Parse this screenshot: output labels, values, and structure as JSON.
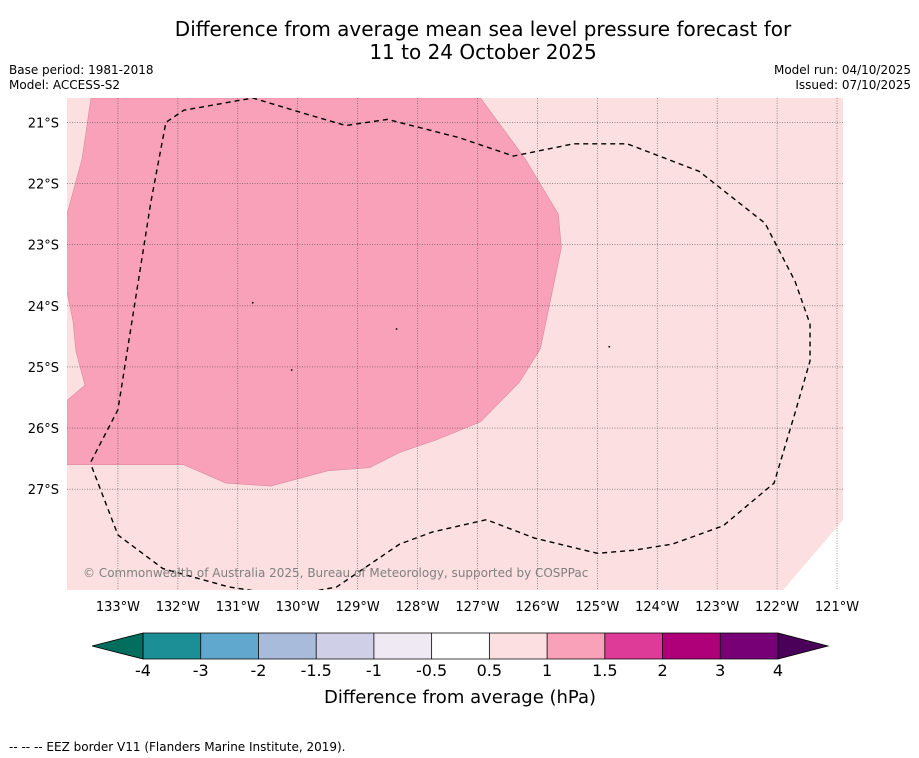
{
  "header": {
    "title_line1": "Difference from average mean sea level pressure forecast for",
    "title_line2": "11 to 24 October 2025",
    "base_period": "Base period: 1981-2018",
    "model": "Model: ACCESS-S2",
    "model_run": "Model run: 04/10/2025",
    "issued": "Issued: 07/10/2025"
  },
  "copyright": "© Commonwealth of Australia 2025, Bureau of Meteorology, supported by COSPPac",
  "footer_note": "--  --  -- EEZ border V11 (Flanders Marine Institute, 2019).",
  "colors": {
    "band_0p5_1": "#fcdfe0",
    "band_1_1p5": "#f9a1b8",
    "grid": "#555555",
    "eez": "#000000"
  },
  "chart_data": {
    "type": "heatmap",
    "title": "Difference from average mean sea level pressure forecast for 11 to 24 October 2025",
    "units": "hPa",
    "lon_range": [
      -133.85,
      -120.9
    ],
    "lat_range": [
      -28.65,
      -20.6
    ],
    "x_ticks": [
      -133,
      -132,
      -131,
      -130,
      -129,
      -128,
      -127,
      -126,
      -125,
      -124,
      -123,
      -122,
      -121
    ],
    "x_tick_labels": [
      "133°W",
      "132°W",
      "131°W",
      "130°W",
      "129°W",
      "128°W",
      "127°W",
      "126°W",
      "125°W",
      "124°W",
      "123°W",
      "122°W",
      "121°W"
    ],
    "y_ticks": [
      -21,
      -22,
      -23,
      -24,
      -25,
      -26,
      -27
    ],
    "y_tick_labels": [
      "21°S",
      "22°S",
      "23°S",
      "24°S",
      "25°S",
      "26°S",
      "27°S"
    ],
    "background_band": "0.5 to 1",
    "regions": [
      {
        "band": "1 to 1.5",
        "polygon_lonlat": [
          [
            -129.8,
            -20.6
          ],
          [
            -126.95,
            -20.6
          ],
          [
            -126.2,
            -21.6
          ],
          [
            -125.65,
            -22.5
          ],
          [
            -125.6,
            -23.05
          ],
          [
            -125.95,
            -24.7
          ],
          [
            -126.3,
            -25.25
          ],
          [
            -126.95,
            -25.9
          ],
          [
            -127.7,
            -26.2
          ],
          [
            -128.3,
            -26.4
          ],
          [
            -128.8,
            -26.65
          ],
          [
            -129.5,
            -26.7
          ],
          [
            -130.45,
            -26.95
          ],
          [
            -131.2,
            -26.9
          ],
          [
            -131.9,
            -26.6
          ],
          [
            -132.6,
            -26.6
          ],
          [
            -133.85,
            -26.6
          ],
          [
            -133.85,
            -25.55
          ],
          [
            -133.55,
            -25.3
          ],
          [
            -133.7,
            -24.75
          ],
          [
            -133.75,
            -24.25
          ],
          [
            -133.9,
            -23.55
          ],
          [
            -133.85,
            -22.5
          ],
          [
            -133.6,
            -21.6
          ],
          [
            -133.45,
            -20.6
          ]
        ]
      }
    ],
    "eez_border_lonlat": [
      [
        -133.45,
        -26.55
      ],
      [
        -133.0,
        -25.7
      ],
      [
        -132.45,
        -22.3
      ],
      [
        -132.2,
        -21.0
      ],
      [
        -131.9,
        -20.8
      ],
      [
        -130.75,
        -20.6
      ],
      [
        -129.9,
        -20.85
      ],
      [
        -129.2,
        -21.05
      ],
      [
        -128.5,
        -20.95
      ],
      [
        -127.3,
        -21.25
      ],
      [
        -126.4,
        -21.55
      ],
      [
        -125.4,
        -21.35
      ],
      [
        -124.5,
        -21.35
      ],
      [
        -123.3,
        -21.8
      ],
      [
        -122.2,
        -22.65
      ],
      [
        -121.7,
        -23.6
      ],
      [
        -121.45,
        -24.3
      ],
      [
        -121.45,
        -24.9
      ],
      [
        -121.7,
        -25.75
      ],
      [
        -122.05,
        -26.9
      ],
      [
        -122.9,
        -27.6
      ],
      [
        -123.75,
        -27.9
      ],
      [
        -124.4,
        -28.0
      ],
      [
        -125.0,
        -28.05
      ],
      [
        -126.05,
        -27.8
      ],
      [
        -126.85,
        -27.5
      ],
      [
        -127.75,
        -27.7
      ],
      [
        -128.3,
        -27.9
      ],
      [
        -128.75,
        -28.2
      ],
      [
        -129.35,
        -28.6
      ],
      [
        -130.15,
        -28.75
      ],
      [
        -131.15,
        -28.6
      ],
      [
        -132.25,
        -28.3
      ],
      [
        -133.0,
        -27.75
      ],
      [
        -133.45,
        -26.6
      ]
    ],
    "colorbar": {
      "label": "Difference from average (hPa)",
      "tick_labels": [
        "-4",
        "-3",
        "-2",
        "-1.5",
        "-1",
        "-0.5",
        "0.5",
        "1",
        "1.5",
        "2",
        "3",
        "4"
      ],
      "band_colors": [
        "#1b8e96",
        "#61a8cf",
        "#a8bbdb",
        "#cfd0e7",
        "#efe9f3",
        "#ffffff",
        "#fcdfe0",
        "#f9a1b8",
        "#de3a97",
        "#af007a",
        "#780076"
      ],
      "extend_low_color": "#006d5d",
      "extend_high_color": "#4a0059"
    }
  }
}
